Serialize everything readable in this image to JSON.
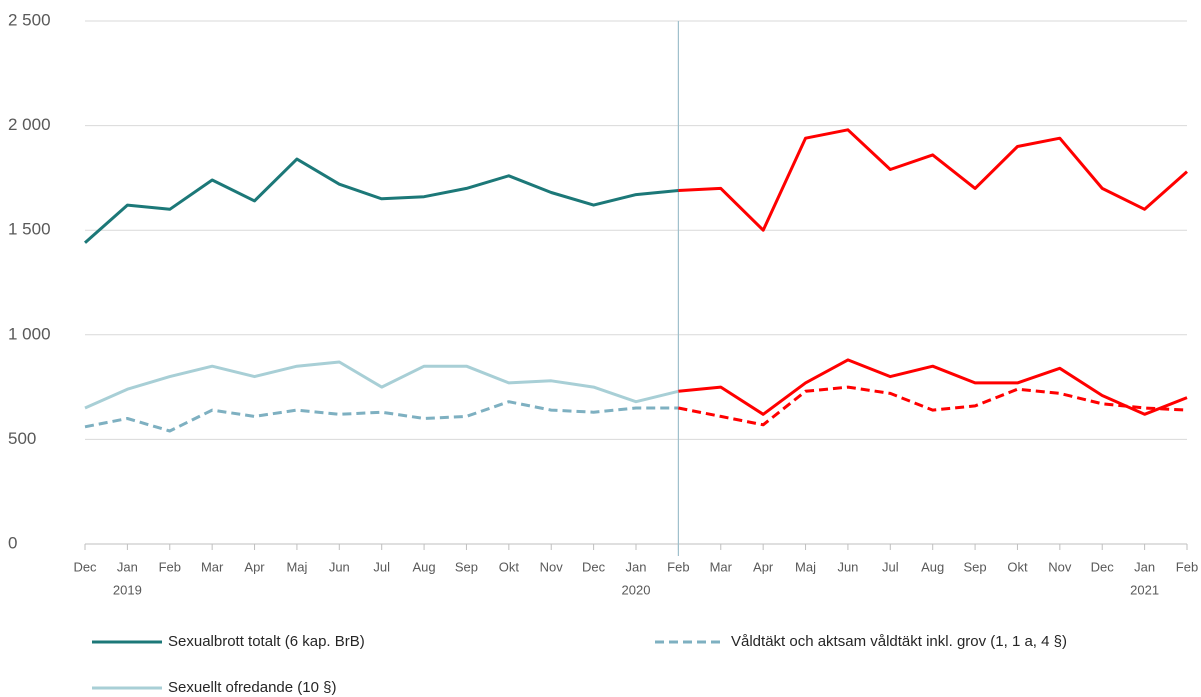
{
  "chart_data": {
    "type": "line",
    "categories": [
      "Dec",
      "Jan",
      "Feb",
      "Mar",
      "Apr",
      "Maj",
      "Jun",
      "Jul",
      "Aug",
      "Sep",
      "Okt",
      "Nov",
      "Dec",
      "Jan",
      "Feb",
      "Mar",
      "Apr",
      "Maj",
      "Jun",
      "Jul",
      "Aug",
      "Sep",
      "Okt",
      "Nov",
      "Dec",
      "Jan",
      "Feb"
    ],
    "category_years": [
      null,
      "2019",
      null,
      null,
      null,
      null,
      null,
      null,
      null,
      null,
      null,
      null,
      null,
      "2020",
      null,
      null,
      null,
      null,
      null,
      null,
      null,
      null,
      null,
      null,
      null,
      "2021",
      null
    ],
    "ylim": [
      0,
      2500
    ],
    "yticks": [
      0,
      500,
      {
        "value": 1000,
        "label": "1 000"
      },
      {
        "value": 1500,
        "label": "1 500"
      },
      {
        "value": 2000,
        "label": "2 000"
      },
      {
        "value": 2500,
        "label": "2 500"
      }
    ],
    "grid": true,
    "highlight_from": 14,
    "highlight_color": "#ff0000",
    "series": [
      {
        "name": "Sexualbrott totalt (6 kap. BrB)",
        "color": "#1c7878",
        "line_style": "solid",
        "values": [
          1440,
          1620,
          1600,
          1740,
          1640,
          1840,
          1720,
          1650,
          1660,
          1700,
          1760,
          1680,
          1620,
          1670,
          1690,
          1700,
          1500,
          1940,
          1980,
          1790,
          1860,
          1700,
          1900,
          1940,
          1700,
          1600,
          1780
        ]
      },
      {
        "name": "Våldtäkt och aktsam våldtäkt inkl. grov (1, 1 a, 4 §)",
        "color": "#7eb0c1",
        "line_style": "dashed",
        "values": [
          560,
          600,
          540,
          640,
          610,
          640,
          620,
          630,
          600,
          610,
          680,
          640,
          630,
          650,
          650,
          610,
          570,
          730,
          750,
          720,
          640,
          660,
          740,
          720,
          670,
          650,
          640
        ]
      },
      {
        "name": "Sexuellt ofredande (10 §)",
        "color": "#a8cfd6",
        "line_style": "solid",
        "values": [
          650,
          740,
          800,
          850,
          800,
          850,
          870,
          750,
          850,
          850,
          770,
          780,
          750,
          680,
          730,
          750,
          620,
          770,
          880,
          800,
          850,
          770,
          770,
          840,
          710,
          620,
          700
        ]
      }
    ]
  }
}
